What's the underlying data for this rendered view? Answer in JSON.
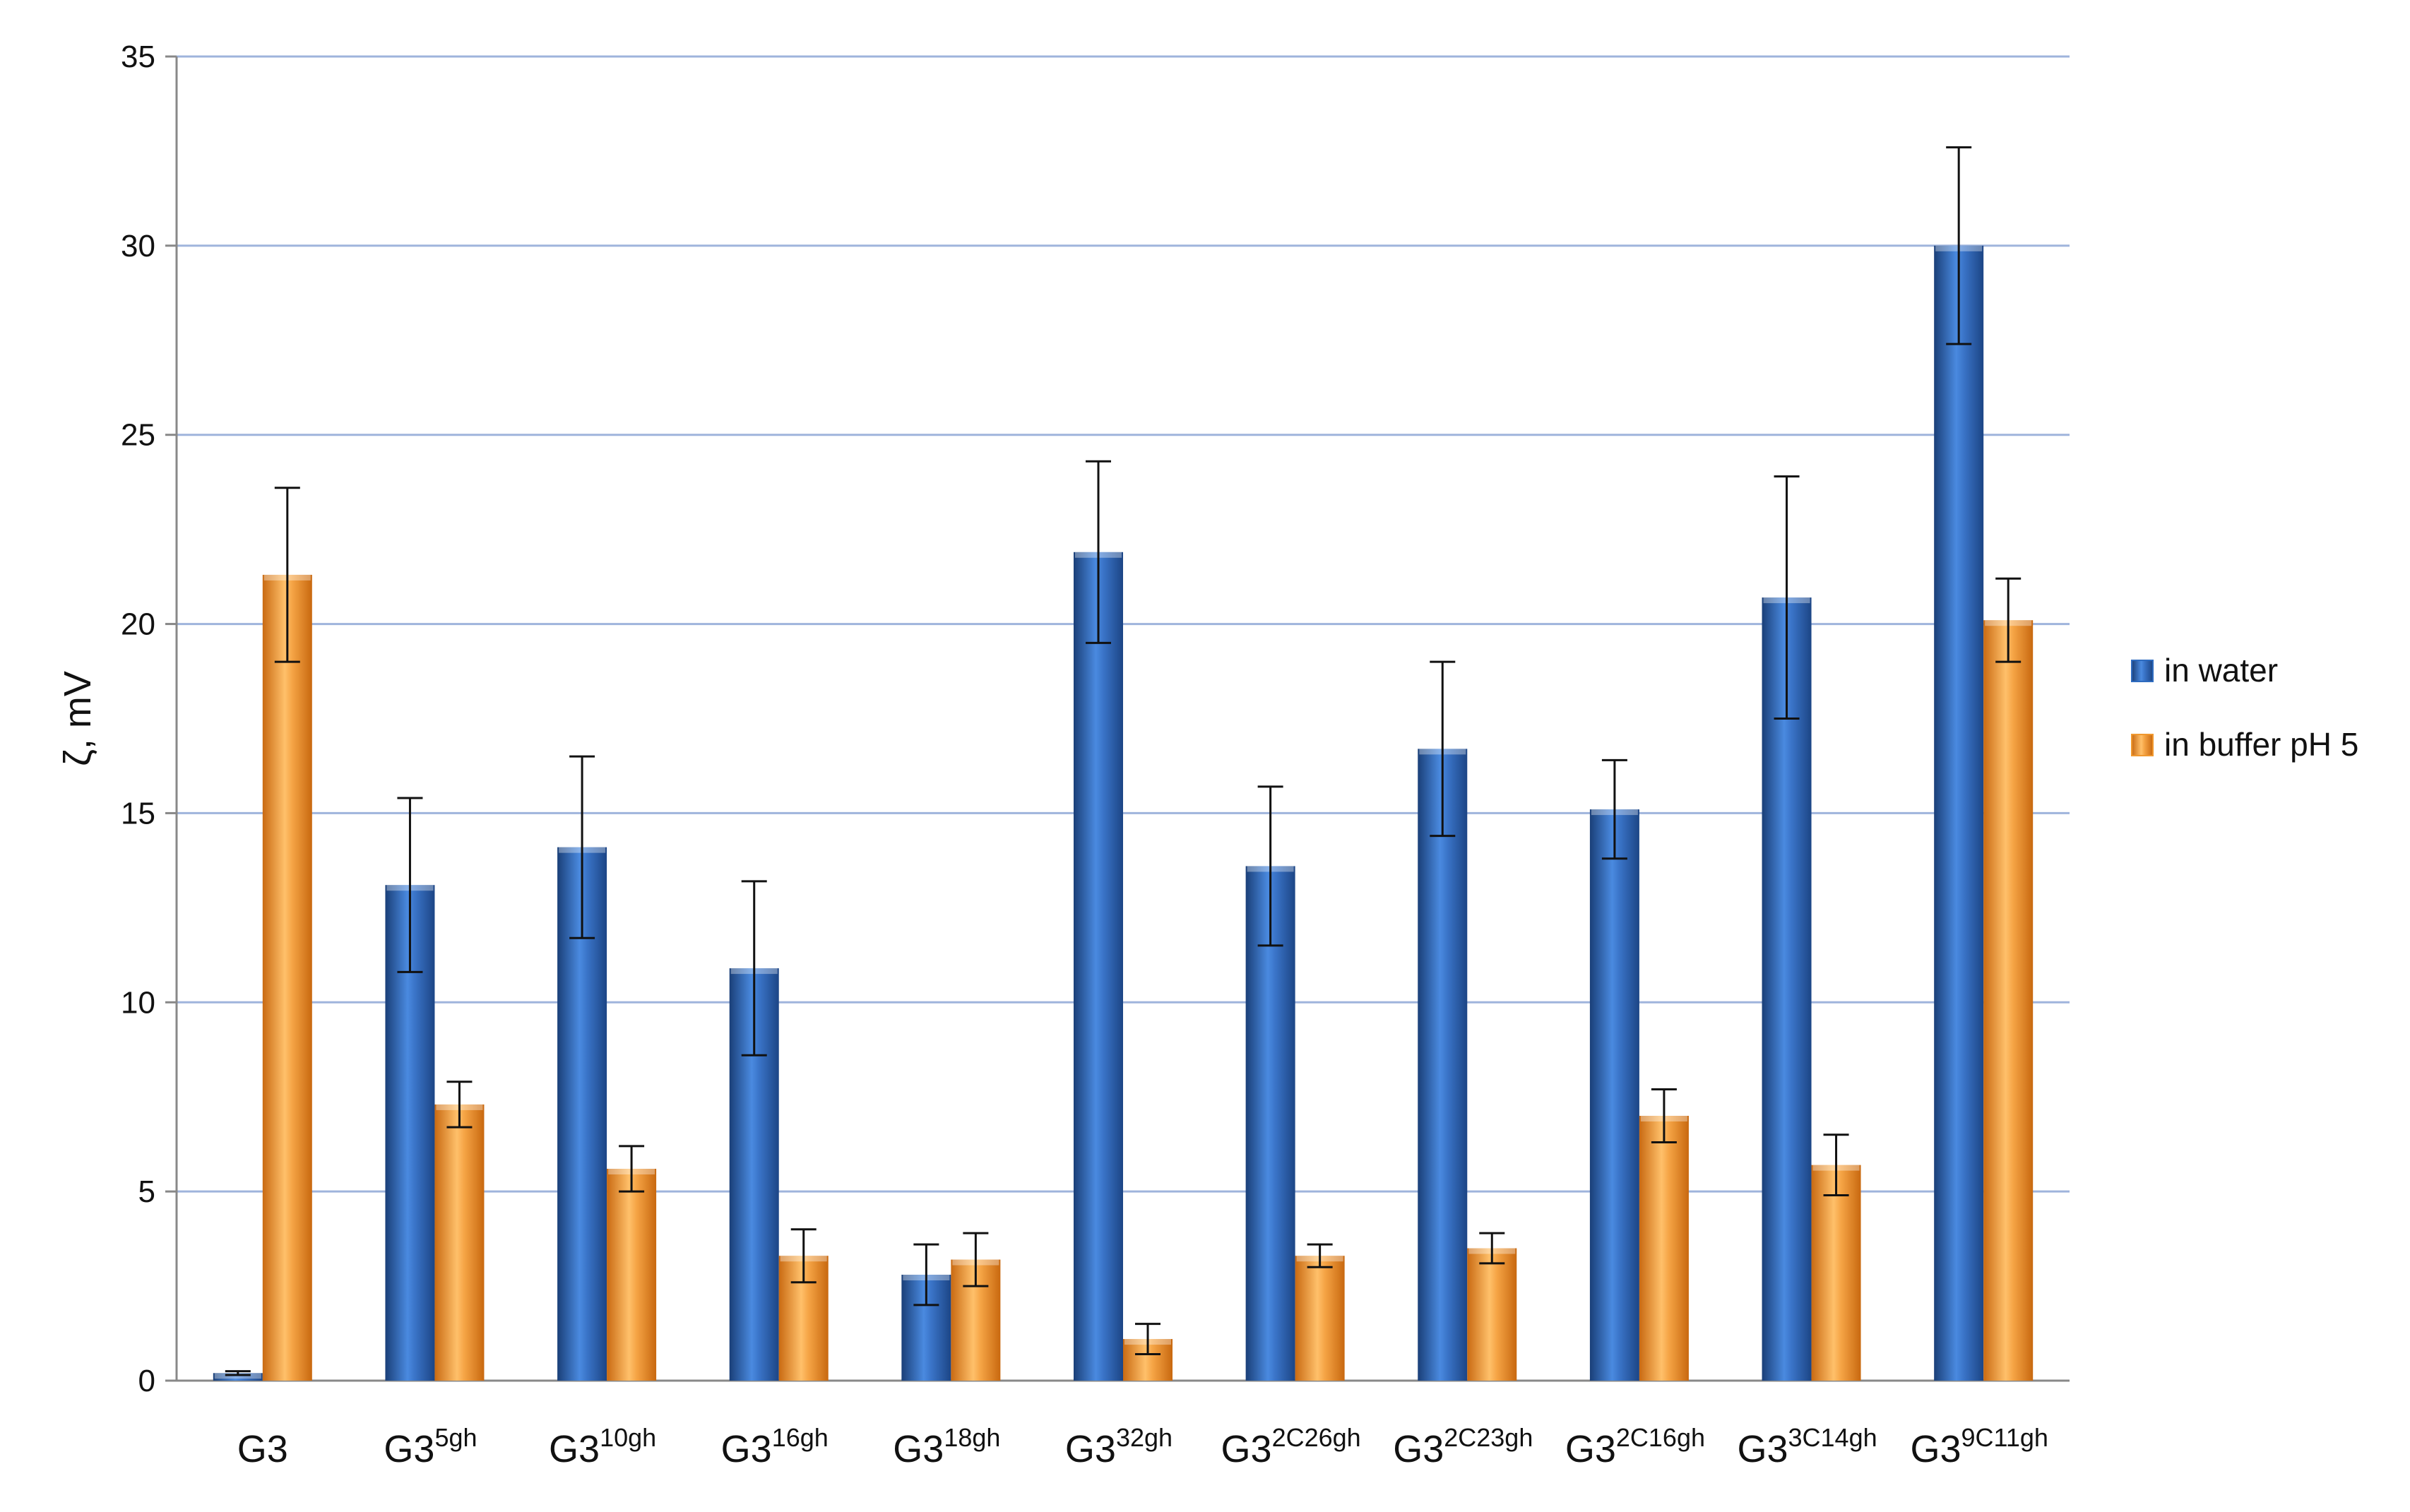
{
  "chart_data": {
    "type": "bar",
    "title": "",
    "xlabel": "",
    "ylabel": "ζ, mV",
    "ylim": [
      0,
      35
    ],
    "yticks": [
      0,
      5,
      10,
      15,
      20,
      25,
      30,
      35
    ],
    "grid": true,
    "legend_position": "right",
    "categories": [
      {
        "base": "G3",
        "sup": ""
      },
      {
        "base": "G3",
        "sup": "5gh"
      },
      {
        "base": "G3",
        "sup": "10gh"
      },
      {
        "base": "G3",
        "sup": "16gh"
      },
      {
        "base": "G3",
        "sup": "18gh"
      },
      {
        "base": "G3",
        "sup": "32gh"
      },
      {
        "base": "G3",
        "sup": "2C26gh"
      },
      {
        "base": "G3",
        "sup": "2C23gh"
      },
      {
        "base": "G3",
        "sup": "2C16gh"
      },
      {
        "base": "G3",
        "sup": "3C14gh"
      },
      {
        "base": "G3",
        "sup": "9C11gh"
      }
    ],
    "series": [
      {
        "name": "in water",
        "color": "#2e6bbf",
        "values": [
          0.2,
          13.1,
          14.1,
          10.9,
          2.8,
          21.9,
          13.6,
          16.7,
          15.1,
          20.7,
          30.0
        ],
        "errors": [
          0.05,
          2.3,
          2.4,
          2.3,
          0.8,
          2.4,
          2.1,
          2.3,
          1.3,
          3.2,
          2.6
        ]
      },
      {
        "name": "in buffer pH 5",
        "color": "#f0982e",
        "values": [
          21.3,
          7.3,
          5.6,
          3.3,
          3.2,
          1.1,
          3.3,
          3.5,
          7.0,
          5.7,
          20.1
        ],
        "errors": [
          2.3,
          0.6,
          0.6,
          0.7,
          0.7,
          0.4,
          0.3,
          0.4,
          0.7,
          0.8,
          1.1
        ]
      }
    ]
  }
}
